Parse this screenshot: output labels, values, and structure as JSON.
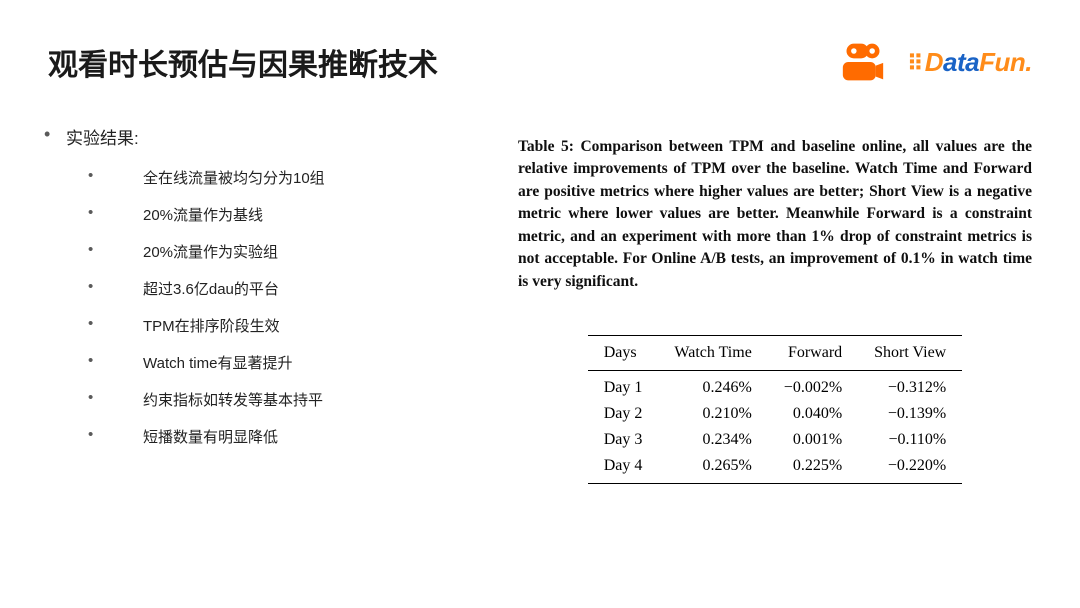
{
  "title": "观看时长预估与因果推断技术",
  "logos": {
    "datafun": {
      "d": "D",
      "ata": "ata",
      "fun": "Fun."
    }
  },
  "section_header": "实验结果:",
  "bullets": [
    "全在线流量被均匀分为10组",
    "20%流量作为基线",
    "20%流量作为实验组",
    "超过3.6亿dau的平台",
    "TPM在排序阶段生效",
    "Watch time有显著提升",
    "约束指标如转发等基本持平",
    "短播数量有明显降低"
  ],
  "table": {
    "caption": "Table 5: Comparison between TPM and baseline online, all values are the relative improvements of TPM over the baseline. Watch Time and Forward are positive metrics where higher values are better; Short View is a negative metric where lower values are better. Meanwhile Forward is a constraint metric, and an experiment with more than 1% drop of constraint metrics is not acceptable. For Online A/B tests, an improvement of 0.1% in watch time is very significant.",
    "columns": [
      "Days",
      "Watch Time",
      "Forward",
      "Short View"
    ],
    "rows": [
      {
        "day": "Day 1",
        "wt": "0.246%",
        "fw": "−0.002%",
        "sv": "−0.312%"
      },
      {
        "day": "Day 2",
        "wt": "0.210%",
        "fw": "0.040%",
        "sv": "−0.139%"
      },
      {
        "day": "Day 3",
        "wt": "0.234%",
        "fw": "0.001%",
        "sv": "−0.110%"
      },
      {
        "day": "Day 4",
        "wt": "0.265%",
        "fw": "0.225%",
        "sv": "−0.220%"
      }
    ],
    "bold_columns": [
      "wt",
      "sv"
    ]
  },
  "colors": {
    "title": "#1a1a1a",
    "kuaishou": "#ff6b00",
    "datafun_orange": "#ff8c1a",
    "datafun_blue": "#1a63c6",
    "body_text": "#222222",
    "background": "#ffffff"
  }
}
